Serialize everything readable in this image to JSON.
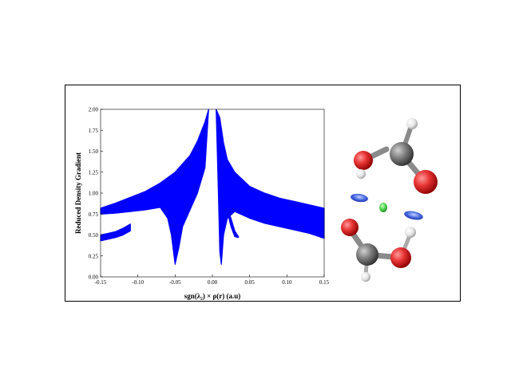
{
  "chart_data": {
    "type": "scatter",
    "title": "",
    "xlabel": "sgn(λ₂) × ρ(r) (a.u)",
    "ylabel": "Reduced Density Gradient",
    "xlim": [
      -0.15,
      0.15
    ],
    "ylim": [
      0.0,
      2.0
    ],
    "x_ticks": [
      -0.15,
      -0.1,
      -0.05,
      0.0,
      0.05,
      0.1,
      0.15
    ],
    "x_tick_labels": [
      "-0.15",
      "-0.10",
      "-0.05",
      "0.00",
      "0.05",
      "0.10",
      "0.15"
    ],
    "y_ticks": [
      0.0,
      0.25,
      0.5,
      0.75,
      1.0,
      1.25,
      1.5,
      1.75,
      2.0
    ],
    "y_tick_labels": [
      "0.00",
      "0.25",
      "0.50",
      "0.75",
      "1.00",
      "1.25",
      "1.50",
      "1.75",
      "2.00"
    ],
    "grid": false,
    "legend": "none",
    "point_color": "#0000ff",
    "series": [
      {
        "band_upper": [
          [
            -0.15,
            0.82
          ],
          [
            -0.13,
            0.88
          ],
          [
            -0.11,
            0.95
          ],
          [
            -0.09,
            1.02
          ],
          [
            -0.07,
            1.12
          ],
          [
            -0.05,
            1.25
          ],
          [
            -0.03,
            1.45
          ],
          [
            -0.02,
            1.62
          ],
          [
            -0.01,
            1.85
          ],
          [
            -0.005,
            2.0
          ]
        ],
        "band_lower": [
          [
            -0.15,
            0.75
          ],
          [
            -0.13,
            0.76
          ],
          [
            -0.11,
            0.78
          ],
          [
            -0.09,
            0.8
          ],
          [
            -0.07,
            0.83
          ],
          [
            -0.06,
            0.7
          ],
          [
            -0.055,
            0.5
          ],
          [
            -0.05,
            0.15
          ],
          [
            -0.045,
            0.35
          ],
          [
            -0.04,
            0.6
          ],
          [
            -0.03,
            0.8
          ],
          [
            -0.02,
            1.0
          ],
          [
            -0.01,
            1.3
          ],
          [
            -0.005,
            2.0
          ]
        ]
      },
      {
        "band_upper": [
          [
            -0.15,
            0.5
          ],
          [
            -0.14,
            0.52
          ],
          [
            -0.13,
            0.54
          ],
          [
            -0.12,
            0.58
          ],
          [
            -0.11,
            0.63
          ]
        ],
        "band_lower": [
          [
            -0.15,
            0.43
          ],
          [
            -0.14,
            0.45
          ],
          [
            -0.13,
            0.47
          ],
          [
            -0.12,
            0.5
          ],
          [
            -0.11,
            0.55
          ]
        ]
      },
      {
        "band_upper": [
          [
            0.005,
            2.0
          ],
          [
            0.01,
            1.9
          ],
          [
            0.015,
            1.6
          ],
          [
            0.02,
            1.4
          ],
          [
            0.03,
            1.25
          ],
          [
            0.05,
            1.08
          ],
          [
            0.07,
            1.0
          ],
          [
            0.09,
            0.94
          ],
          [
            0.11,
            0.9
          ],
          [
            0.13,
            0.86
          ],
          [
            0.15,
            0.82
          ]
        ],
        "band_lower": [
          [
            0.005,
            2.0
          ],
          [
            0.008,
            1.0
          ],
          [
            0.01,
            0.3
          ],
          [
            0.012,
            0.15
          ],
          [
            0.015,
            0.5
          ],
          [
            0.02,
            0.7
          ],
          [
            0.03,
            0.78
          ],
          [
            0.05,
            0.7
          ],
          [
            0.07,
            0.64
          ],
          [
            0.09,
            0.6
          ],
          [
            0.11,
            0.56
          ],
          [
            0.13,
            0.52
          ],
          [
            0.15,
            0.46
          ]
        ]
      },
      {
        "band_upper": [
          [
            0.02,
            0.82
          ],
          [
            0.025,
            0.7
          ],
          [
            0.03,
            0.55
          ],
          [
            0.035,
            0.48
          ]
        ],
        "band_lower": [
          [
            0.02,
            0.78
          ],
          [
            0.025,
            0.6
          ],
          [
            0.03,
            0.48
          ],
          [
            0.035,
            0.47
          ]
        ]
      }
    ]
  }
}
